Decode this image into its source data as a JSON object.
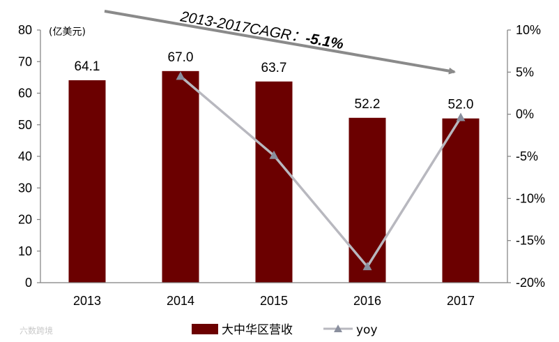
{
  "chart_data": {
    "type": "bar",
    "categories": [
      "2013",
      "2014",
      "2015",
      "2016",
      "2017"
    ],
    "series": [
      {
        "name": "大中华区营收",
        "type": "bar",
        "axis": "left",
        "values": [
          64.1,
          67.0,
          63.7,
          52.2,
          52.0
        ],
        "color": "#6b0000"
      },
      {
        "name": "yoy",
        "type": "line",
        "axis": "right",
        "values": [
          null,
          4.5,
          -4.9,
          -18.1,
          -0.4
        ],
        "color": "#b8b8bf",
        "marker": "triangle",
        "marker_color": "#8a8f9e"
      }
    ],
    "data_labels": [
      "64.1",
      "67.0",
      "63.7",
      "52.2",
      "52.0"
    ],
    "left_axis": {
      "unit_label": "(亿美元)",
      "ylim": [
        0,
        80
      ],
      "ticks": [
        "0",
        "10",
        "20",
        "30",
        "40",
        "50",
        "60",
        "70",
        "80"
      ]
    },
    "right_axis": {
      "ylim": [
        -20,
        10
      ],
      "ticks": [
        "-20%",
        "-15%",
        "-10%",
        "-5%",
        "0%",
        "5%",
        "10%"
      ]
    },
    "annotation": {
      "text_prefix": "2013-2017CAGR：",
      "text_value": "-5.1%"
    },
    "legend": {
      "placement": "bottom"
    },
    "grid": false
  },
  "watermark": "六数跨境"
}
